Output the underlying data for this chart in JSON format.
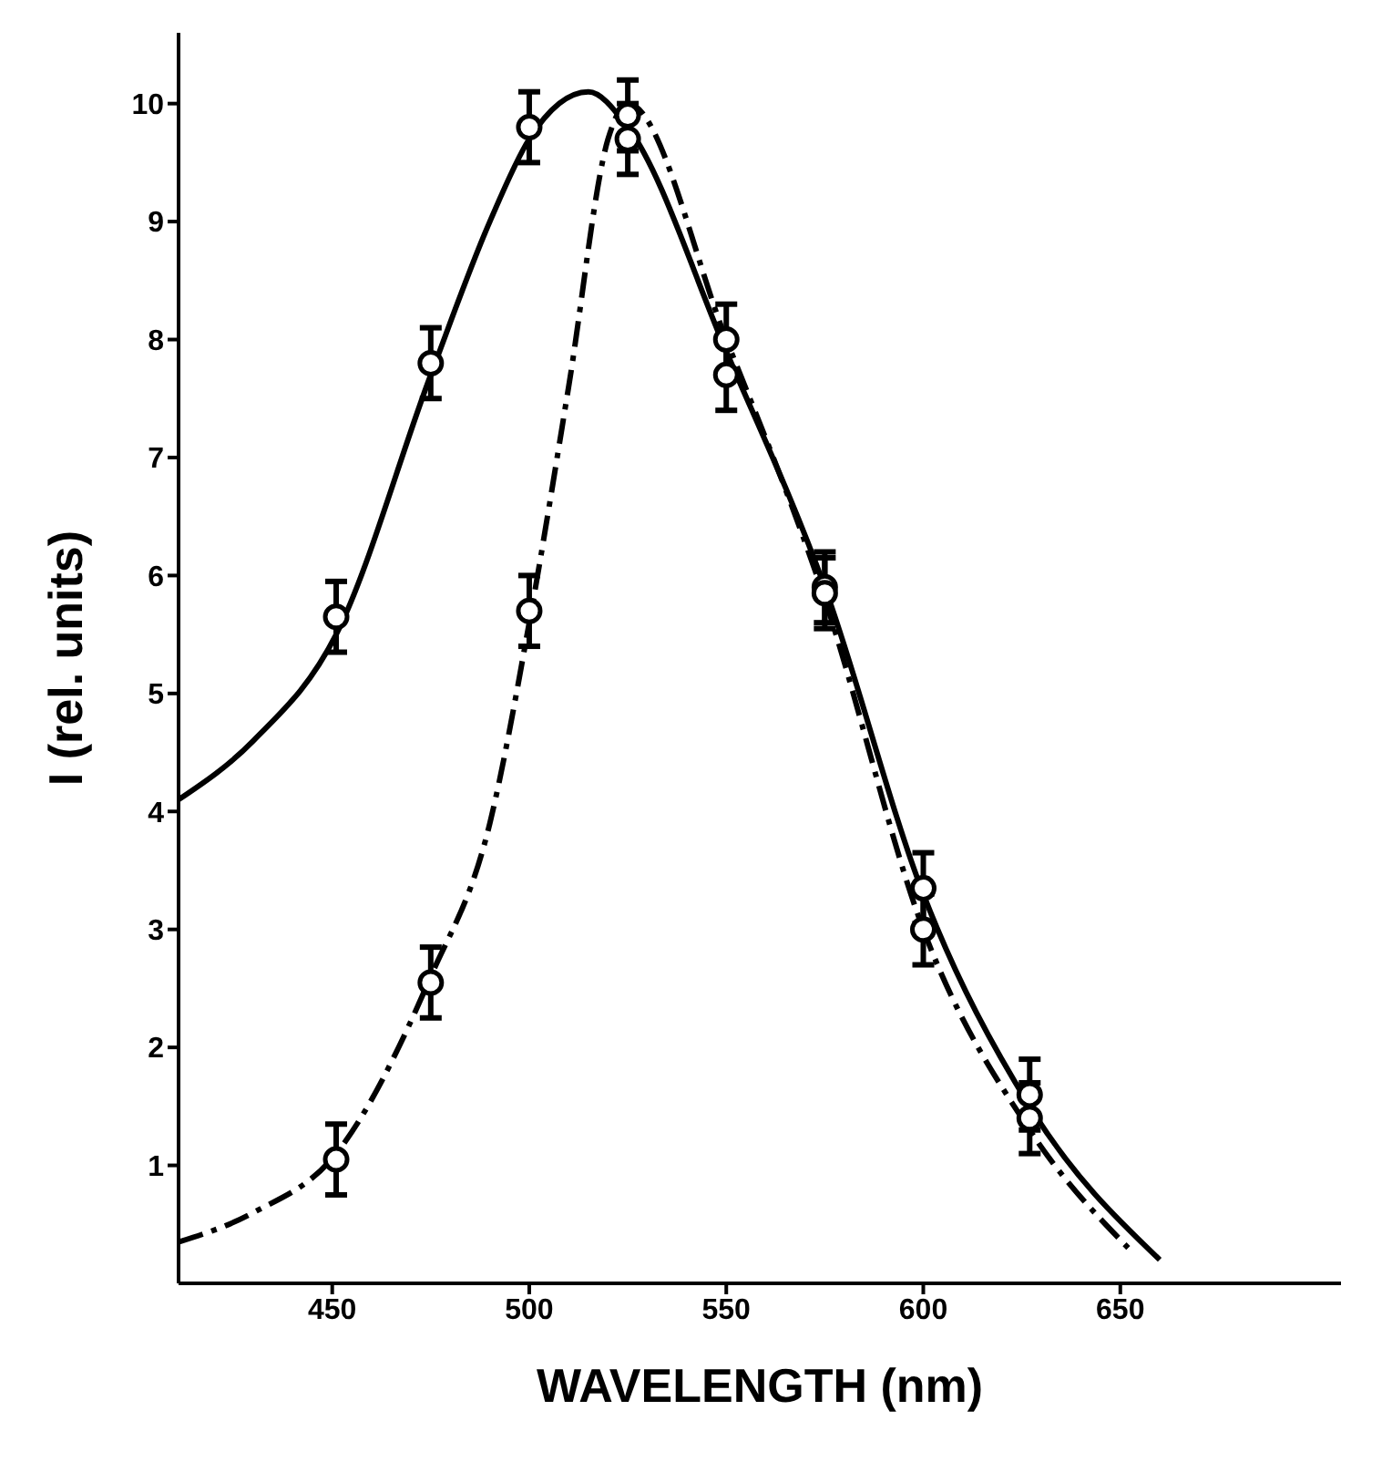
{
  "chart_data": {
    "type": "line",
    "xlabel": "WAVELENGTH (nm)",
    "ylabel": "I (rel. units)",
    "xlim": [
      411,
      706
    ],
    "xticks": [
      450,
      500,
      550,
      600,
      650
    ],
    "ylim": [
      0,
      10.6
    ],
    "yticks": [
      1,
      2,
      3,
      4,
      5,
      6,
      7,
      8,
      9,
      10
    ],
    "grid": false,
    "legend": false,
    "series": [
      {
        "color": "#000000",
        "line_style": "solid",
        "marker": "none",
        "x": [
          411,
          430,
          451,
          475,
          490,
          500,
          515,
          525,
          550,
          575,
          600,
          627,
          660
        ],
        "values": [
          4.1,
          4.6,
          5.5,
          7.7,
          9.0,
          9.7,
          10.1,
          9.8,
          7.9,
          5.9,
          3.3,
          1.5,
          0.2
        ]
      },
      {
        "color": "#000000",
        "line_style": "dashed",
        "marker": "none",
        "x": [
          411,
          430,
          451,
          475,
          490,
          500,
          510,
          520,
          525,
          550,
          575,
          600,
          627,
          652
        ],
        "values": [
          0.35,
          0.6,
          1.1,
          2.6,
          3.9,
          5.6,
          7.6,
          9.7,
          10.0,
          8.0,
          5.8,
          3.0,
          1.3,
          0.3
        ]
      },
      {
        "type": "scatter",
        "color": "#000000",
        "marker": "circle",
        "x": [
          451,
          475,
          500,
          525,
          550,
          575,
          600,
          627
        ],
        "values": [
          5.65,
          7.8,
          9.8,
          9.7,
          7.7,
          5.9,
          3.35,
          1.6
        ],
        "errors": [
          0.3,
          0.3,
          0.3,
          0.3,
          0.3,
          0.3,
          0.3,
          0.3
        ]
      },
      {
        "type": "scatter",
        "color": "#000000",
        "marker": "circle",
        "x": [
          451,
          475,
          500,
          525,
          550,
          575,
          600,
          627
        ],
        "values": [
          1.05,
          2.55,
          5.7,
          9.9,
          8.0,
          5.85,
          3.0,
          1.4
        ],
        "errors": [
          0.3,
          0.3,
          0.3,
          0.3,
          0.3,
          0.3,
          0.3,
          0.3
        ]
      }
    ]
  }
}
